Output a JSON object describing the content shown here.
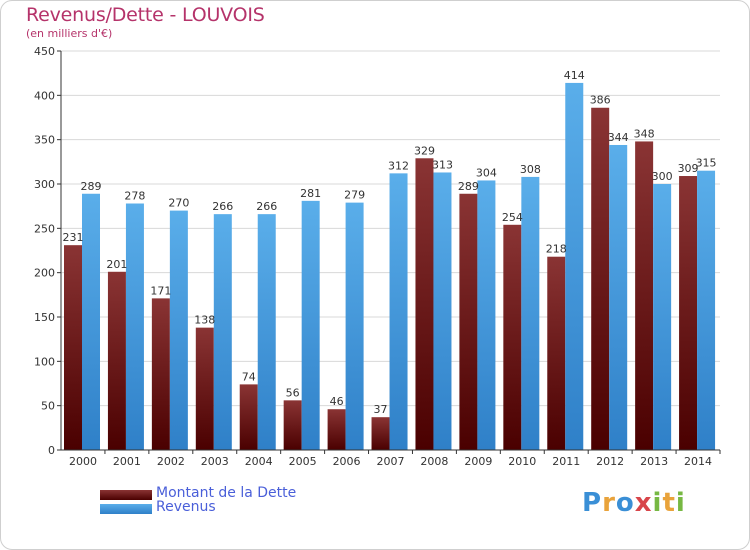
{
  "header": {
    "title": "Revenus/Dette - LOUVOIS",
    "subtitle": "(en milliers d'€)"
  },
  "logo": {
    "text": "Proxiti",
    "letters": [
      {
        "char": "P",
        "color": "#3a8fd6"
      },
      {
        "char": "r",
        "color": "#e9a33b"
      },
      {
        "char": "o",
        "color": "#3a8fd6"
      },
      {
        "char": "x",
        "color": "#d8454a"
      },
      {
        "char": "i",
        "color": "#77b843"
      },
      {
        "char": "t",
        "color": "#e9a33b"
      },
      {
        "char": "i",
        "color": "#77b843"
      }
    ]
  },
  "colors": {
    "debt_top": "#8a3434",
    "debt_bottom": "#4a0000",
    "revenue_top": "#5aaeea",
    "revenue_bottom": "#2f80c8",
    "grid": "#d8d8d8",
    "axis": "#333333",
    "text": "#333333"
  },
  "chart_data": {
    "type": "bar",
    "title": "Revenus/Dette - LOUVOIS",
    "subtitle": "(en milliers d'€)",
    "xlabel": "",
    "ylabel": "",
    "ylim": [
      0,
      450
    ],
    "yticks": [
      0,
      50,
      100,
      150,
      200,
      250,
      300,
      350,
      400,
      450
    ],
    "grid": true,
    "legend_position": "bottom-left",
    "categories": [
      "2000",
      "2001",
      "2002",
      "2003",
      "2004",
      "2005",
      "2006",
      "2007",
      "2008",
      "2009",
      "2010",
      "2011",
      "2012",
      "2013",
      "2014"
    ],
    "series": [
      {
        "name": "Montant de la Dette",
        "color": "#6b1a1a",
        "values": [
          231,
          201,
          171,
          138,
          74,
          56,
          46,
          37,
          329,
          289,
          254,
          218,
          386,
          348,
          309
        ]
      },
      {
        "name": "Revenus",
        "color": "#4aa0e0",
        "values": [
          289,
          278,
          270,
          266,
          266,
          281,
          279,
          312,
          313,
          304,
          308,
          414,
          344,
          300,
          315
        ]
      }
    ]
  }
}
